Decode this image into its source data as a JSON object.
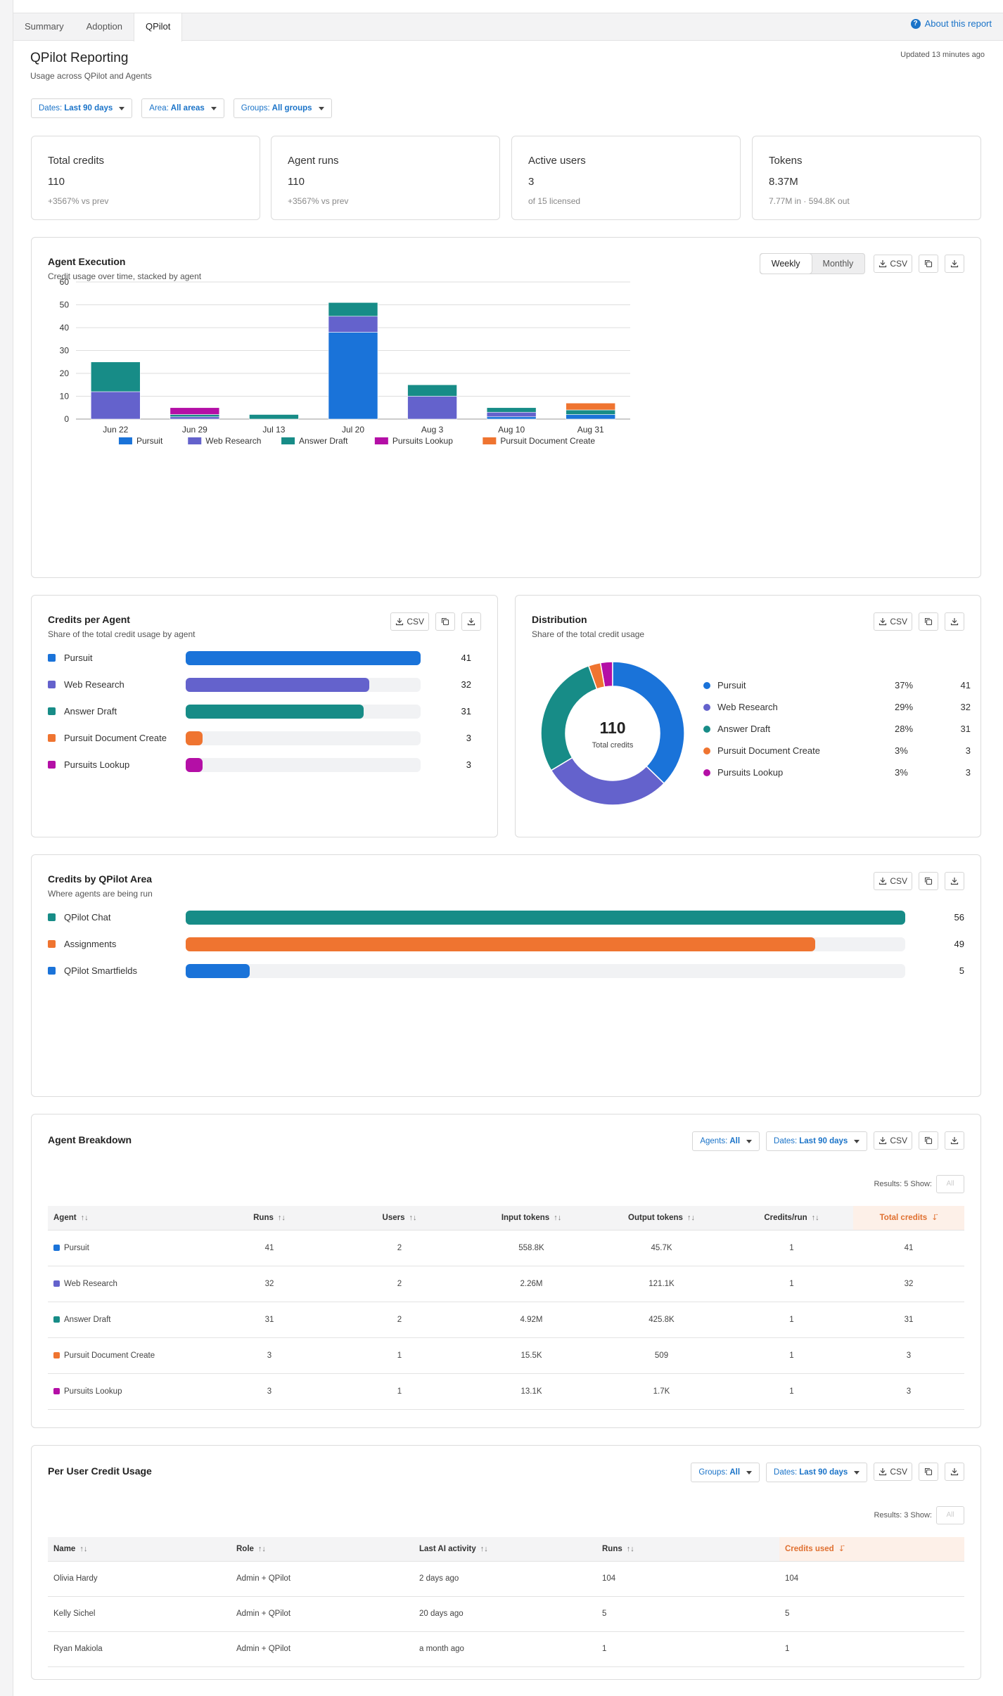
{
  "tabs": [
    "Summary",
    "Adoption",
    "QPilot"
  ],
  "about_link": "About this report",
  "header": {
    "title": "QPilot Reporting",
    "subtitle": "Usage across QPilot and Agents",
    "updated": "Updated 13 minutes ago"
  },
  "filters": {
    "dates": {
      "label": "Dates:",
      "value": "Last 90 days"
    },
    "area": {
      "label": "Area:",
      "value": "All areas"
    },
    "groups": {
      "label": "Groups:",
      "value": "All groups"
    }
  },
  "kpis": [
    {
      "label": "Total credits",
      "value": "110",
      "sub": "+3567% vs prev"
    },
    {
      "label": "Agent runs",
      "value": "110",
      "sub": "+3567% vs prev"
    },
    {
      "label": "Active users",
      "value": "3",
      "sub": "of 15 licensed"
    },
    {
      "label": "Tokens",
      "value": "8.37M",
      "sub": "7.77M in · 594.8K out"
    }
  ],
  "csv_label": "CSV",
  "agent_execution": {
    "title": "Agent Execution",
    "subtitle": "Credit usage over time, stacked by agent",
    "toggle": [
      "Weekly",
      "Monthly"
    ]
  },
  "chart_data": {
    "type": "bar",
    "stacked": true,
    "categories": [
      "Jun 22",
      "Jun 29",
      "Jul 13",
      "Jul 20",
      "Aug 3",
      "Aug 10",
      "Aug 31"
    ],
    "series": [
      {
        "name": "Pursuit",
        "color": "#1a73d9",
        "values": [
          0,
          0,
          0,
          38,
          0,
          1,
          2
        ]
      },
      {
        "name": "Web Research",
        "color": "#6462cc",
        "values": [
          12,
          1,
          0,
          7,
          10,
          2,
          0
        ]
      },
      {
        "name": "Answer Draft",
        "color": "#178c87",
        "values": [
          13,
          1,
          2,
          6,
          5,
          2,
          2
        ]
      },
      {
        "name": "Pursuits Lookup",
        "color": "#b40fa6",
        "values": [
          0,
          3,
          0,
          0,
          0,
          0,
          0
        ]
      },
      {
        "name": "Pursuit Document Create",
        "color": "#ef7430",
        "values": [
          0,
          0,
          0,
          0,
          0,
          0,
          3
        ]
      }
    ],
    "ylim": [
      0,
      60
    ],
    "yticks": [
      "0",
      "10",
      "20",
      "30",
      "40",
      "50",
      "60"
    ],
    "grid": true,
    "legend": "bottom"
  },
  "credits_per_agent": {
    "title": "Credits per Agent",
    "subtitle": "Share of the total credit usage by agent",
    "max": 41,
    "items": [
      {
        "name": "Pursuit",
        "value": "41",
        "amount": 41,
        "color": "#1a73d9"
      },
      {
        "name": "Web Research",
        "value": "32",
        "amount": 32,
        "color": "#6462cc"
      },
      {
        "name": "Answer Draft",
        "value": "31",
        "amount": 31,
        "color": "#178c87"
      },
      {
        "name": "Pursuit Document Create",
        "value": "3",
        "amount": 3,
        "color": "#ef7430"
      },
      {
        "name": "Pursuits Lookup",
        "value": "3",
        "amount": 3,
        "color": "#b40fa6"
      }
    ]
  },
  "distribution": {
    "title": "Distribution",
    "subtitle": "Share of the total credit usage",
    "center_value": "110",
    "center_label": "Total credits",
    "items": [
      {
        "name": "Pursuit",
        "pct": "37%",
        "value": "41",
        "amount": 41,
        "color": "#1a73d9"
      },
      {
        "name": "Web Research",
        "pct": "29%",
        "value": "32",
        "amount": 32,
        "color": "#6462cc"
      },
      {
        "name": "Answer Draft",
        "pct": "28%",
        "value": "31",
        "amount": 31,
        "color": "#178c87"
      },
      {
        "name": "Pursuit Document Create",
        "pct": "3%",
        "value": "3",
        "amount": 3,
        "color": "#ef7430"
      },
      {
        "name": "Pursuits Lookup",
        "pct": "3%",
        "value": "3",
        "amount": 3,
        "color": "#b40fa6"
      }
    ]
  },
  "credits_by_area": {
    "title": "Credits by QPilot Area",
    "subtitle": "Where agents are being run",
    "max": 56,
    "items": [
      {
        "name": "QPilot Chat",
        "value": "56",
        "amount": 56,
        "color": "#178c87"
      },
      {
        "name": "Assignments",
        "value": "49",
        "amount": 49,
        "color": "#ef7430"
      },
      {
        "name": "QPilot Smartfields",
        "value": "5",
        "amount": 5,
        "color": "#1a73d9"
      }
    ]
  },
  "agent_breakdown": {
    "title": "Agent Breakdown",
    "filters": {
      "agents": {
        "label": "Agents:",
        "value": "All"
      },
      "dates": {
        "label": "Dates:",
        "value": "Last 90 days"
      }
    },
    "results_label": "Results: 5 Show:",
    "show_value": "All",
    "columns": [
      "Agent",
      "Runs",
      "Users",
      "Input tokens",
      "Output tokens",
      "Credits/run",
      "Total credits"
    ],
    "rows": [
      {
        "agent": "Pursuit",
        "color": "#1a73d9",
        "runs": "41",
        "users": "2",
        "input": "558.8K",
        "output": "45.7K",
        "cpr": "1",
        "total": "41"
      },
      {
        "agent": "Web Research",
        "color": "#6462cc",
        "runs": "32",
        "users": "2",
        "input": "2.26M",
        "output": "121.1K",
        "cpr": "1",
        "total": "32"
      },
      {
        "agent": "Answer Draft",
        "color": "#178c87",
        "runs": "31",
        "users": "2",
        "input": "4.92M",
        "output": "425.8K",
        "cpr": "1",
        "total": "31"
      },
      {
        "agent": "Pursuit Document Create",
        "color": "#ef7430",
        "runs": "3",
        "users": "1",
        "input": "15.5K",
        "output": "509",
        "cpr": "1",
        "total": "3"
      },
      {
        "agent": "Pursuits Lookup",
        "color": "#b40fa6",
        "runs": "3",
        "users": "1",
        "input": "13.1K",
        "output": "1.7K",
        "cpr": "1",
        "total": "3"
      }
    ]
  },
  "per_user": {
    "title": "Per User Credit Usage",
    "filters": {
      "groups": {
        "label": "Groups:",
        "value": "All"
      },
      "dates": {
        "label": "Dates:",
        "value": "Last 90 days"
      }
    },
    "results_label": "Results: 3 Show:",
    "show_value": "All",
    "columns": [
      "Name",
      "Role",
      "Last AI activity",
      "Runs",
      "Credits used"
    ],
    "rows": [
      {
        "name": "Olivia Hardy",
        "role": "Admin + QPilot",
        "last": "2 days ago",
        "runs": "104",
        "credits": "104"
      },
      {
        "name": "Kelly Sichel",
        "role": "Admin + QPilot",
        "last": "20 days ago",
        "runs": "5",
        "credits": "5"
      },
      {
        "name": "Ryan Makiola",
        "role": "Admin + QPilot",
        "last": "a month ago",
        "runs": "1",
        "credits": "1"
      }
    ]
  }
}
